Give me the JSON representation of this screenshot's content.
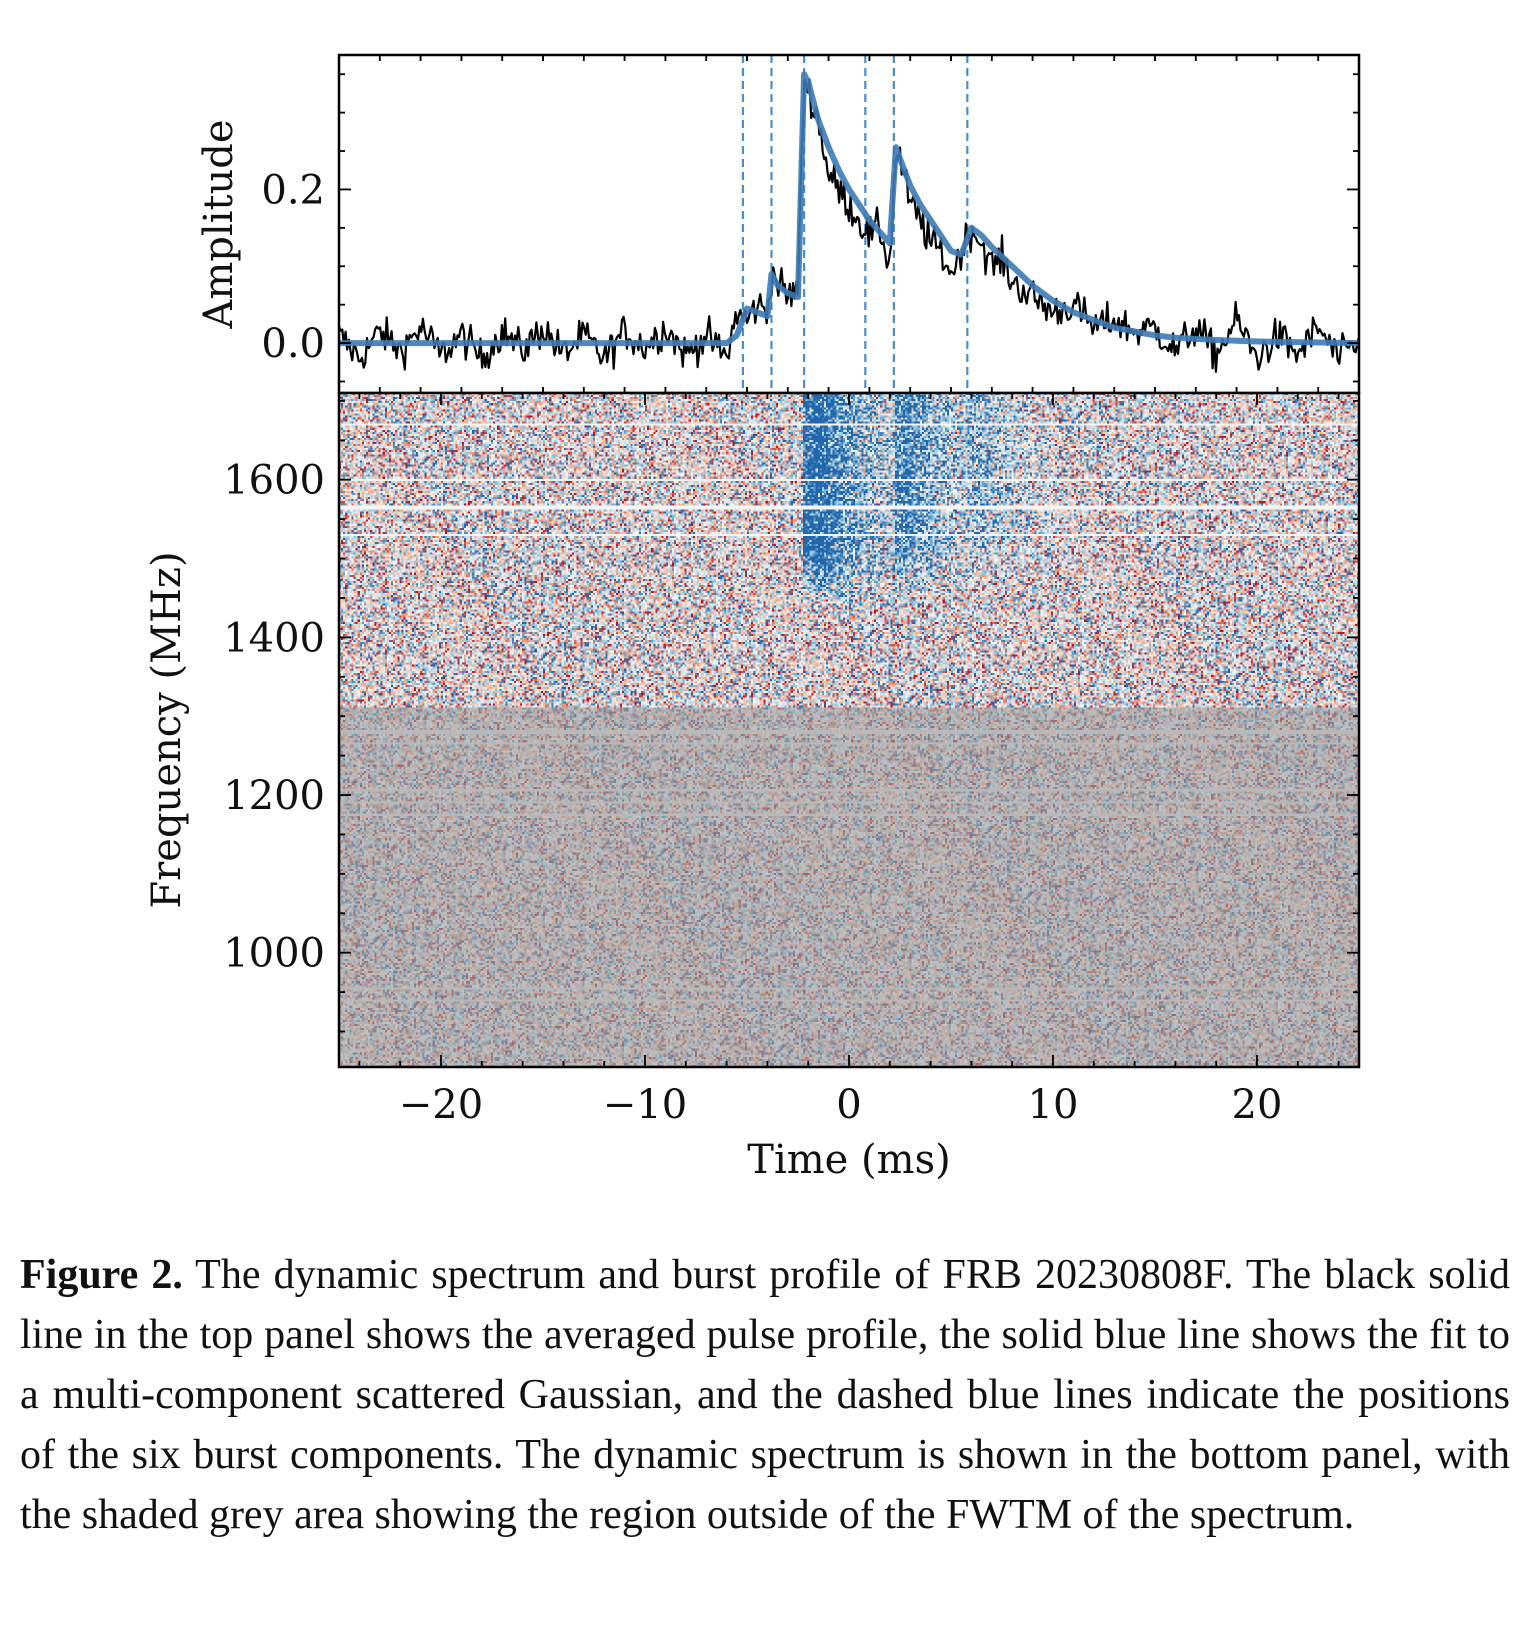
{
  "chart_data": [
    {
      "panel": "top",
      "type": "line",
      "ylabel": "Amplitude",
      "xlim": [
        -25,
        25
      ],
      "ylim": [
        -0.065,
        0.375
      ],
      "yticks": [
        0.0,
        0.2
      ],
      "ytick_labels": [
        "0.0",
        "0.2"
      ],
      "series": [
        {
          "role": "averaged pulse profile",
          "color": "#000000",
          "x": [
            -25,
            -24,
            -23,
            -22,
            -21,
            -20,
            -19,
            -18,
            -17,
            -16,
            -15,
            -14,
            -13,
            -12,
            -11,
            -10,
            -9,
            -8,
            -7,
            -6,
            -5.5,
            -5,
            -4.5,
            -4,
            -3.8,
            -3.5,
            -3,
            -2.5,
            -2.2,
            -2,
            -1.5,
            -1,
            -0.5,
            0,
            0.5,
            1,
            1.5,
            2,
            2.3,
            2.5,
            3,
            3.5,
            4,
            4.5,
            5,
            5.5,
            6,
            6.5,
            7,
            7.5,
            8,
            9,
            10,
            11,
            12,
            13,
            14,
            15,
            16,
            17,
            18,
            19,
            20,
            21,
            22,
            23,
            24,
            25
          ],
          "y": [
            0.01,
            -0.02,
            0.015,
            -0.01,
            0.02,
            -0.015,
            0.01,
            -0.02,
            0.015,
            -0.01,
            0.02,
            -0.015,
            0.01,
            -0.02,
            0.015,
            -0.005,
            0.02,
            -0.015,
            0.01,
            -0.02,
            0.04,
            0.03,
            0.05,
            0.04,
            0.09,
            0.08,
            0.06,
            0.07,
            0.35,
            0.33,
            0.29,
            0.22,
            0.2,
            0.18,
            0.16,
            0.14,
            0.15,
            0.1,
            0.25,
            0.24,
            0.18,
            0.16,
            0.13,
            0.12,
            0.09,
            0.12,
            0.15,
            0.13,
            0.1,
            0.11,
            0.08,
            0.06,
            0.04,
            0.05,
            0.02,
            0.03,
            0.015,
            0.02,
            -0.01,
            0.02,
            -0.015,
            0.03,
            -0.02,
            0.01,
            -0.015,
            0.02,
            -0.02,
            0.0
          ]
        },
        {
          "role": "fit to a multi-component scattered Gaussian",
          "color": "#3d7ab5",
          "x": [
            -25,
            -10,
            -6,
            -5.5,
            -5,
            -4.5,
            -4,
            -3.8,
            -3.5,
            -3,
            -2.5,
            -2.2,
            -2,
            -1.5,
            -1,
            -0.5,
            0,
            0.5,
            1,
            1.5,
            2,
            2.3,
            2.5,
            3,
            3.5,
            4,
            4.5,
            5,
            5.5,
            6,
            6.5,
            7,
            8,
            9,
            10,
            11,
            12,
            13,
            14,
            15,
            16,
            18,
            20,
            25
          ],
          "y": [
            0.0,
            0.0,
            0.0,
            0.01,
            0.045,
            0.04,
            0.035,
            0.09,
            0.075,
            0.065,
            0.06,
            0.35,
            0.34,
            0.29,
            0.255,
            0.225,
            0.2,
            0.18,
            0.16,
            0.145,
            0.13,
            0.255,
            0.24,
            0.205,
            0.18,
            0.16,
            0.14,
            0.12,
            0.115,
            0.15,
            0.14,
            0.125,
            0.1,
            0.075,
            0.055,
            0.04,
            0.03,
            0.02,
            0.015,
            0.01,
            0.007,
            0.004,
            0.002,
            0.0
          ]
        }
      ],
      "component_positions": [
        -5.2,
        -3.8,
        -2.2,
        0.8,
        2.2,
        5.8
      ],
      "component_line_color": "#4a8fc9"
    },
    {
      "panel": "bottom",
      "type": "heatmap",
      "xlabel": "Time (ms)",
      "ylabel": "Frequency (MHz)",
      "xlim": [
        -25,
        25
      ],
      "ylim": [
        855,
        1710
      ],
      "xticks": [
        -20,
        -10,
        0,
        10,
        20
      ],
      "xtick_labels": [
        "−20",
        "−10",
        "0",
        "10",
        "20"
      ],
      "yticks": [
        1000,
        1200,
        1400,
        1600
      ],
      "ytick_labels": [
        "1000",
        "1200",
        "1400",
        "1600"
      ],
      "colormap": [
        "#2166ac",
        "#92c5de",
        "#f7f7f7",
        "#f4a582",
        "#b2182b"
      ],
      "burst_components_mhz": [
        {
          "t": -2.0,
          "f_min": 1430,
          "f_max": 1700,
          "strength": 1.0
        },
        {
          "t": 2.4,
          "f_min": 1450,
          "f_max": 1700,
          "strength": 0.55
        },
        {
          "t": 6.0,
          "f_min": 1480,
          "f_max": 1700,
          "strength": 0.25
        }
      ],
      "shaded_region_mhz": [
        855,
        1310
      ],
      "shaded_color": "#9e9e9e",
      "flagged_channels_mhz": [
        940,
        955,
        1175,
        1190,
        1205,
        1265,
        1280,
        1530,
        1565,
        1600,
        1670
      ]
    }
  ],
  "caption": {
    "label": "Figure 2.",
    "text": " The dynamic spectrum and burst profile of FRB 20230808F. The black solid line in the top panel shows the averaged pulse profile, the solid blue line shows the fit to a multi-component scattered Gaussian, and the dashed blue lines indicate the positions of the six burst components. The dynamic spectrum is shown in the bottom panel, with the shaded grey area showing the region outside of the FWTM of the spectrum."
  }
}
